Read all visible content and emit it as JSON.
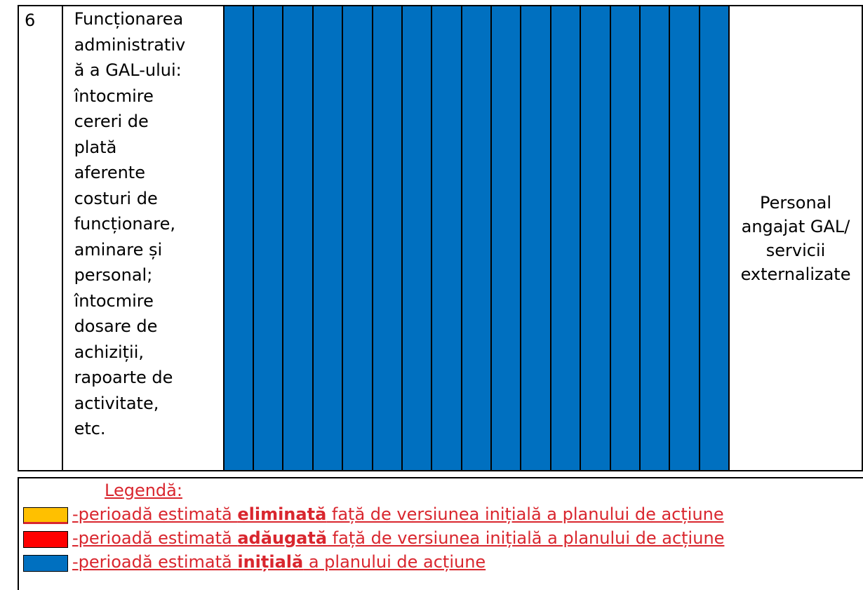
{
  "row": {
    "number": "6",
    "activity_lines": [
      "Funcționarea",
      "administrativ",
      "ă a GAL-ului:",
      "întocmire",
      "cereri de",
      "plată",
      "aferente",
      "costuri de",
      "funcționare,",
      "aminare și",
      "personal;",
      "întocmire",
      "dosare de",
      "achiziții,",
      "rapoarte de",
      "activitate,",
      "etc."
    ],
    "responsible_lines": [
      "Personal",
      "angajat GAL/",
      "servicii",
      "externalizate"
    ],
    "period_cells": 17,
    "period_color": "#0070C0"
  },
  "legend": {
    "title": "Legendă:",
    "items": [
      {
        "color": "#FFC000",
        "prefix": " -perioadă estimată ",
        "bold": "eliminată",
        "suffix": " față de versiunea inițială a planului de acțiune"
      },
      {
        "color": "#FF0000",
        "prefix": "-perioadă estimată ",
        "bold": "adăugată",
        "suffix": " față de versiunea inițială a planului de acțiune"
      },
      {
        "color": "#0070C0",
        "prefix": " -perioadă estimată ",
        "bold": "inițială",
        "suffix": " a planului de acțiune"
      }
    ],
    "text_color": "#D9262E"
  }
}
